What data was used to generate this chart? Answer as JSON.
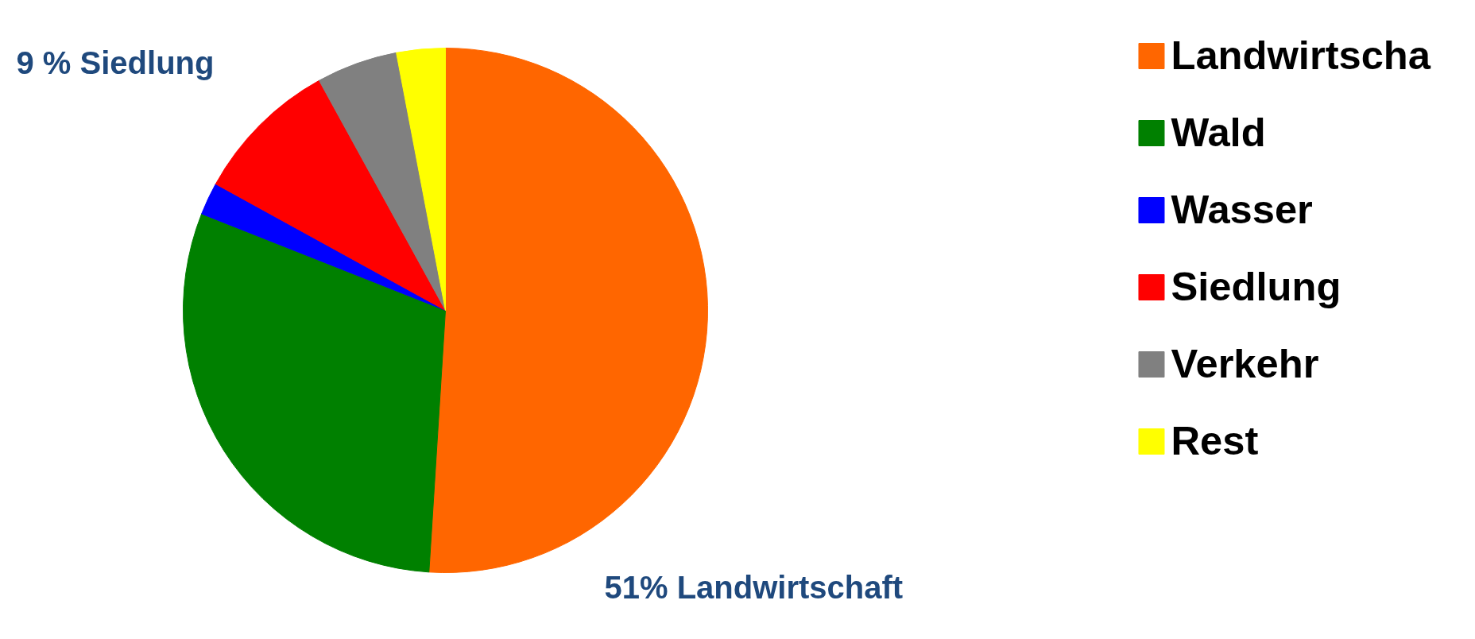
{
  "chart_data": {
    "type": "pie",
    "categories": [
      "Landwirtscha",
      "Wald",
      "Wasser",
      "Siedlung",
      "Verkehr",
      "Rest"
    ],
    "values": [
      51,
      30,
      2,
      9,
      5,
      3
    ],
    "colors": [
      "#ff6600",
      "#008000",
      "#0000ff",
      "#ff0000",
      "#808080",
      "#ffff00"
    ],
    "legend": "right",
    "annotations": [
      "9 % Siedlung",
      "51% Landwirtschaft"
    ]
  }
}
